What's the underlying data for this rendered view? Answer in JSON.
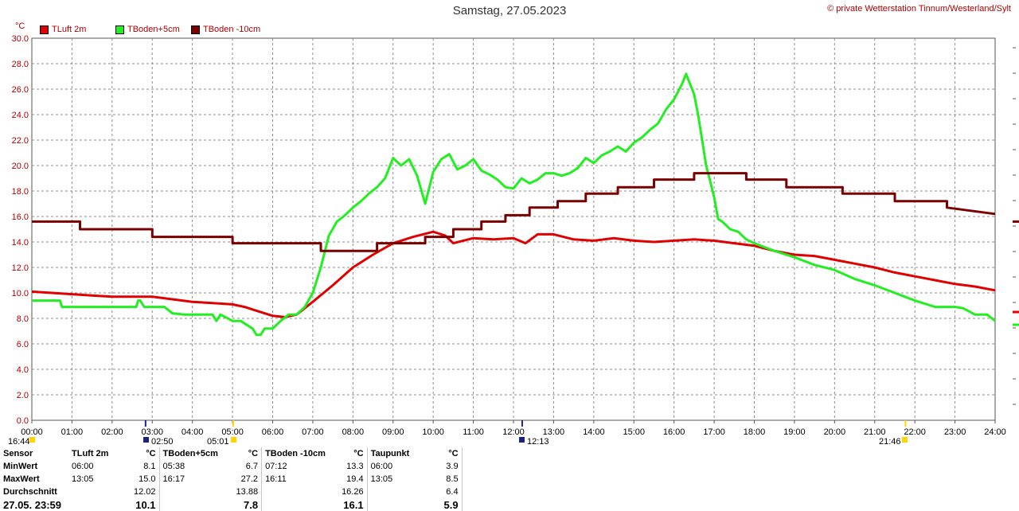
{
  "header": {
    "title": "Samstag, 27.05.2023",
    "copyright": "© private Wetterstation Tinnum/Westerland/Sylt",
    "unit": "°C"
  },
  "colors": {
    "tluft": "#e00000",
    "tboden5": "#22ee22",
    "tboden10": "#7a0000",
    "grid": "#8c8c8c",
    "axis_text": "#b00000"
  },
  "chart_data": {
    "type": "line",
    "title": "Samstag, 27.05.2023",
    "xlabel": "",
    "ylabel": "°C",
    "xlim": [
      0,
      24
    ],
    "ylim": [
      0,
      30
    ],
    "y_ticks": [
      "0.0",
      "2.0",
      "4.0",
      "6.0",
      "8.0",
      "10.0",
      "12.0",
      "14.0",
      "16.0",
      "18.0",
      "20.0",
      "22.0",
      "24.0",
      "26.0",
      "28.0",
      "30.0"
    ],
    "x_ticks": [
      "00:00",
      "01:00",
      "02:00",
      "03:00",
      "04:00",
      "05:00",
      "06:00",
      "07:00",
      "08:00",
      "09:00",
      "10:00",
      "11:00",
      "12:00",
      "13:00",
      "14:00",
      "15:00",
      "16:00",
      "17:00",
      "18:00",
      "19:00",
      "20:00",
      "21:00",
      "22:00",
      "23:00",
      "24:00"
    ],
    "grid": true,
    "legend": "top-left",
    "series": [
      {
        "name": "TLuft 2m",
        "color": "#e00000",
        "x": [
          0,
          0.5,
          1,
          1.5,
          2,
          2.5,
          3,
          3.5,
          4,
          4.5,
          5,
          5.3,
          5.6,
          6,
          6.3,
          6.6,
          7,
          7.5,
          8,
          8.5,
          9,
          9.5,
          10,
          10.3,
          10.5,
          11,
          11.5,
          12,
          12.3,
          12.6,
          13,
          13.5,
          14,
          14.5,
          15,
          15.5,
          16,
          16.5,
          17,
          17.5,
          18,
          18.5,
          19,
          19.5,
          20,
          20.5,
          21,
          21.5,
          22,
          22.5,
          23,
          23.5,
          24
        ],
        "y": [
          10.1,
          10,
          9.9,
          9.8,
          9.7,
          9.7,
          9.7,
          9.5,
          9.3,
          9.2,
          9.1,
          8.9,
          8.6,
          8.2,
          8.1,
          8.3,
          9.3,
          10.6,
          12.0,
          13.0,
          13.9,
          14.4,
          14.8,
          14.5,
          13.9,
          14.3,
          14.2,
          14.3,
          13.9,
          14.6,
          14.6,
          14.2,
          14.1,
          14.3,
          14.1,
          14.0,
          14.1,
          14.2,
          14.1,
          13.9,
          13.7,
          13.3,
          13.0,
          12.9,
          12.6,
          12.3,
          12.0,
          11.6,
          11.3,
          11.0,
          10.7,
          10.5,
          10.2
        ]
      },
      {
        "name": "TBoden+5cm",
        "color": "#22ee22",
        "x": [
          0,
          0.7,
          0.75,
          1.3,
          2,
          2.6,
          2.65,
          2.7,
          2.8,
          3,
          3.3,
          3.5,
          3.8,
          4,
          4.5,
          4.6,
          4.7,
          5,
          5.2,
          5.5,
          5.6,
          5.7,
          5.8,
          6,
          6.2,
          6.4,
          6.6,
          6.8,
          7,
          7.2,
          7.4,
          7.6,
          7.8,
          8,
          8.2,
          8.4,
          8.6,
          8.8,
          9,
          9.2,
          9.4,
          9.6,
          9.8,
          10,
          10.2,
          10.4,
          10.6,
          10.8,
          11,
          11.2,
          11.4,
          11.6,
          11.8,
          12,
          12.2,
          12.4,
          12.6,
          12.8,
          13,
          13.2,
          13.4,
          13.6,
          13.8,
          14,
          14.2,
          14.4,
          14.6,
          14.8,
          15,
          15.2,
          15.4,
          15.6,
          15.8,
          16,
          16.1,
          16.2,
          16.3,
          16.4,
          16.5,
          16.6,
          16.7,
          16.8,
          16.9,
          17,
          17.1,
          17.2,
          17.4,
          17.6,
          17.8,
          18,
          18.5,
          19,
          19.5,
          20,
          20.5,
          21,
          21.5,
          22,
          22.5,
          23,
          23.2,
          23.5,
          23.8,
          24
        ],
        "y": [
          9.4,
          9.4,
          8.9,
          8.9,
          8.9,
          8.9,
          9.4,
          9.4,
          8.9,
          8.9,
          8.9,
          8.4,
          8.3,
          8.3,
          8.3,
          7.8,
          8.3,
          7.8,
          7.8,
          7.2,
          6.7,
          6.7,
          7.2,
          7.2,
          7.8,
          8.3,
          8.3,
          8.9,
          10.0,
          12.0,
          14.5,
          15.6,
          16.1,
          16.7,
          17.2,
          17.8,
          18.3,
          19.0,
          20.6,
          20.0,
          20.5,
          19.2,
          17.0,
          19.5,
          20.5,
          20.9,
          19.7,
          20.0,
          20.5,
          19.6,
          19.3,
          18.9,
          18.3,
          18.2,
          19.0,
          18.6,
          18.9,
          19.4,
          19.4,
          19.2,
          19.4,
          19.8,
          20.6,
          20.2,
          20.8,
          21.1,
          21.5,
          21.1,
          21.8,
          22.2,
          22.8,
          23.3,
          24.4,
          25.2,
          25.8,
          26.4,
          27.2,
          26.4,
          25.6,
          24.0,
          22.0,
          20.0,
          18.8,
          17.5,
          15.8,
          15.6,
          15.0,
          14.8,
          14.2,
          13.9,
          13.3,
          12.8,
          12.2,
          11.8,
          11.1,
          10.6,
          10.0,
          9.4,
          8.9,
          8.9,
          8.8,
          8.3,
          8.3,
          7.8
        ]
      },
      {
        "name": "TBoden -10cm",
        "color": "#7a0000",
        "x": [
          0,
          1.2,
          1.2,
          3,
          3,
          5,
          5,
          7.2,
          7.2,
          8.6,
          8.6,
          9.8,
          9.8,
          10.5,
          10.5,
          11.2,
          11.2,
          11.8,
          11.8,
          12.4,
          12.4,
          13.1,
          13.1,
          13.8,
          13.8,
          14.6,
          14.6,
          15.5,
          15.5,
          16.5,
          16.5,
          17.8,
          17.8,
          18.8,
          18.8,
          20.2,
          20.2,
          21.5,
          21.5,
          22.8,
          22.8,
          24
        ],
        "y": [
          15.6,
          15.6,
          15.0,
          15.0,
          14.4,
          14.4,
          13.9,
          13.9,
          13.3,
          13.3,
          13.9,
          13.9,
          14.4,
          14.4,
          15.0,
          15.0,
          15.6,
          15.6,
          16.1,
          16.1,
          16.7,
          16.7,
          17.2,
          17.2,
          17.8,
          17.8,
          18.3,
          18.3,
          18.9,
          18.9,
          19.4,
          19.4,
          18.9,
          18.9,
          18.3,
          18.3,
          17.8,
          17.8,
          17.2,
          17.2,
          16.7,
          16.2
        ]
      }
    ]
  },
  "astro": {
    "left_time": "16:44",
    "sunrise_time": "02:50",
    "moonset_time": "05:01",
    "noon_time": "12:13",
    "sunset_time": "21:46"
  },
  "stats": {
    "headers": [
      "Sensor",
      "TLuft 2m",
      "°C",
      "TBoden+5cm",
      "°C",
      "TBoden -10cm",
      "°C",
      "Taupunkt",
      "°C"
    ],
    "rows": [
      {
        "label": "MinWert",
        "cells": [
          "06:00",
          "8.1",
          "05:38",
          "6.7",
          "07:12",
          "13.3",
          "06:00",
          "3.9"
        ]
      },
      {
        "label": "MaxWert",
        "cells": [
          "13:05",
          "15.0",
          "16:17",
          "27.2",
          "16:11",
          "19.4",
          "13:05",
          "8.5"
        ]
      },
      {
        "label": "Durchschnitt",
        "cells": [
          "",
          "12.02",
          "",
          "13.88",
          "",
          "16.26",
          "",
          "6.4"
        ]
      },
      {
        "label": "27.05. 23:59",
        "cells": [
          "",
          "10.1",
          "",
          "7.8",
          "",
          "16.1",
          "",
          "5.9"
        ]
      }
    ]
  }
}
